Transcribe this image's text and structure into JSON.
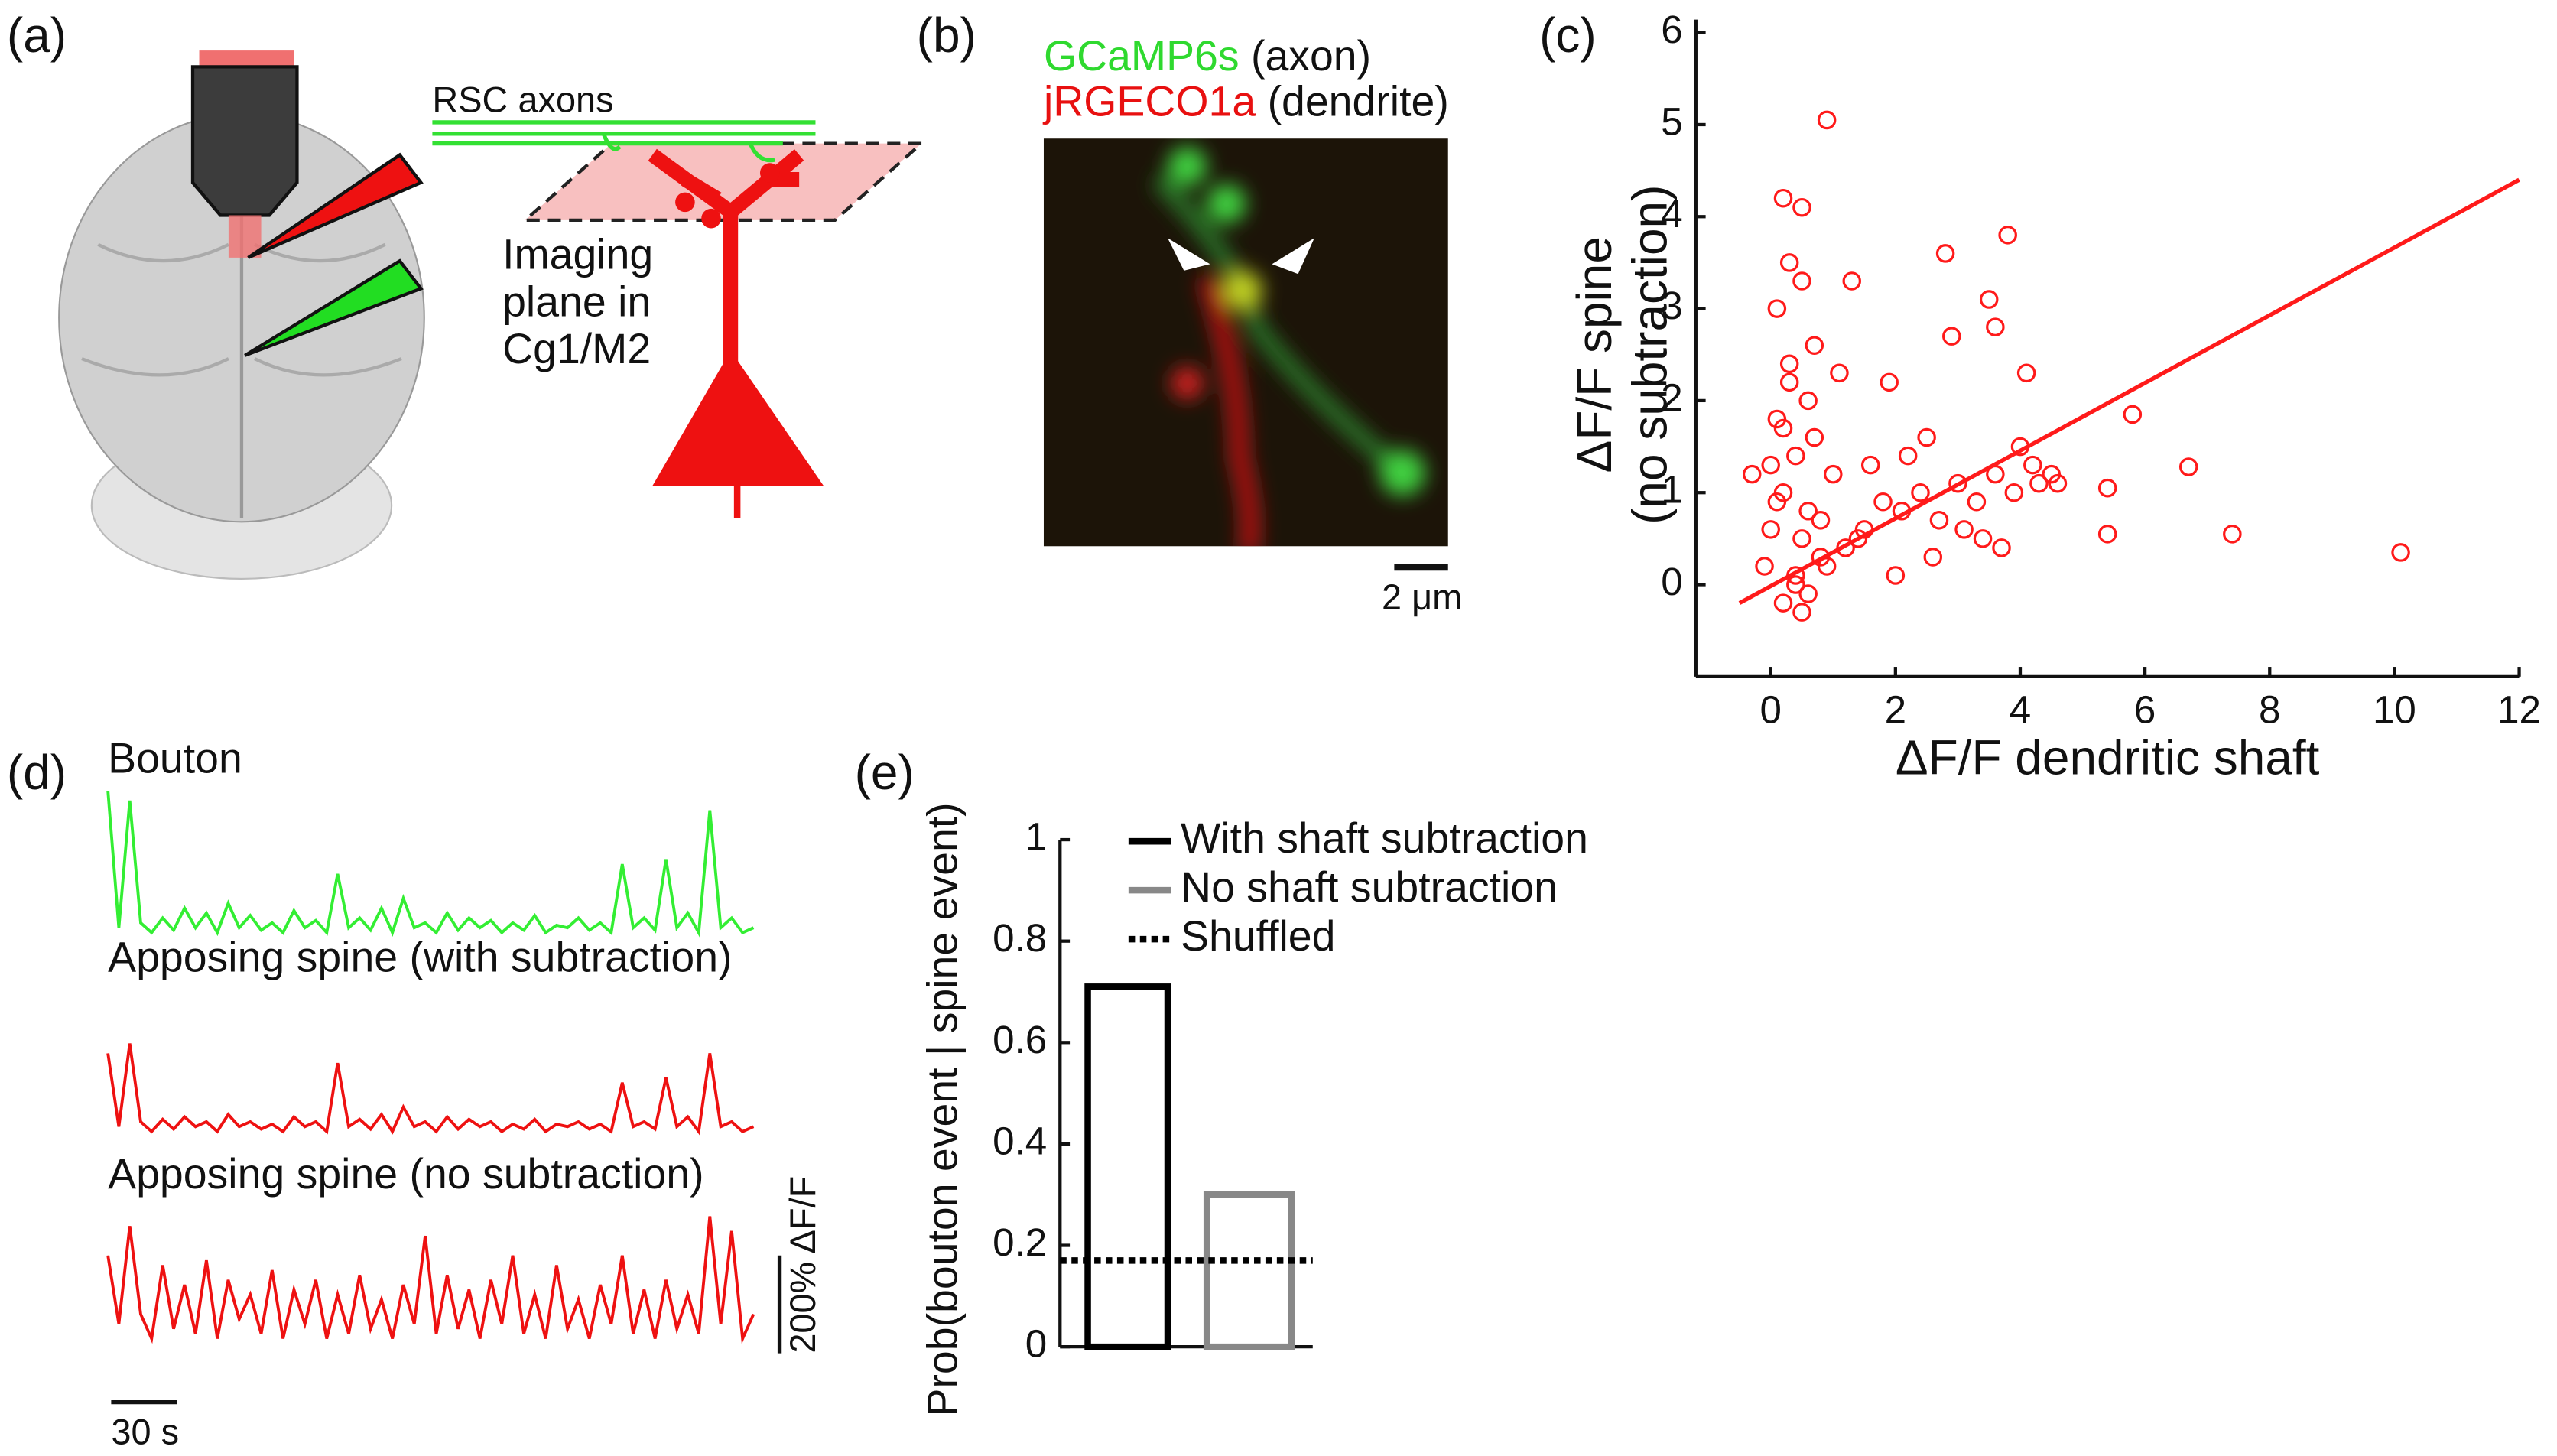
{
  "panel_labels": [
    "(a)",
    "(b)",
    "(c)",
    "(d)",
    "(e)"
  ],
  "diagram_a": {
    "axons_label": "RSC axons",
    "plane_label": [
      "Imaging",
      "plane in",
      "Cg1/M2"
    ]
  },
  "image_b": {
    "legend": [
      {
        "name": "GCaMP6s",
        "note": "(axon)",
        "color": "#2fd92f"
      },
      {
        "name": "jRGECO1a",
        "note": "(dendrite)",
        "color": "#e81010"
      }
    ],
    "scale_label": "2 μm"
  },
  "chart_data": [
    {
      "type": "scatter",
      "xlabel": "ΔF/F dendritic shaft",
      "ylabel": [
        "ΔF/F spine",
        "(no subtraction)"
      ],
      "color": "#ff1a1a",
      "xlim": [
        -1.2,
        12
      ],
      "xticks": [
        0,
        2,
        4,
        6,
        8,
        10,
        12
      ],
      "ylim": [
        -1,
        6
      ],
      "yticks": [
        0,
        1,
        2,
        3,
        4,
        5,
        6
      ],
      "x": [
        0.9,
        0.2,
        0.5,
        3.8,
        2.8,
        0.3,
        0.1,
        0.5,
        1.3,
        3.5,
        3.6,
        2.9,
        5.8,
        5.4,
        5.4,
        6.7,
        7.4,
        10.1,
        -0.1,
        0.0,
        0.2,
        0.4,
        0.6,
        0.8,
        1.0,
        0.1,
        0.3,
        0.5,
        0.7,
        0.2,
        0.4,
        0.6,
        0.0,
        0.3,
        0.5,
        0.1,
        0.8,
        1.2,
        1.5,
        1.8,
        2.1,
        2.4,
        2.7,
        3.0,
        3.3,
        3.6,
        3.9,
        4.2,
        4.5,
        1.6,
        2.2,
        2.6,
        3.1,
        3.4,
        4.0,
        4.3,
        1.1,
        1.9,
        2.5,
        3.7,
        0.6,
        0.2,
        -0.3,
        0.9,
        1.4,
        2.0,
        4.1,
        4.6,
        0.4,
        0.7
      ],
      "y": [
        5.05,
        4.2,
        4.1,
        3.8,
        3.6,
        3.5,
        3.0,
        3.3,
        3.3,
        3.1,
        2.8,
        2.7,
        1.85,
        1.05,
        0.55,
        1.28,
        0.55,
        0.35,
        0.2,
        0.6,
        1.0,
        1.4,
        0.8,
        0.3,
        1.2,
        1.8,
        2.2,
        0.5,
        1.6,
        -0.2,
        0.1,
        2.0,
        1.3,
        2.4,
        -0.3,
        0.9,
        0.7,
        0.4,
        0.6,
        0.9,
        0.8,
        1.0,
        0.7,
        1.1,
        0.9,
        1.2,
        1.0,
        1.3,
        1.2,
        1.3,
        1.4,
        0.3,
        0.6,
        0.5,
        1.5,
        1.1,
        2.3,
        2.2,
        1.6,
        0.4,
        -0.1,
        1.7,
        1.2,
        0.2,
        0.5,
        0.1,
        2.3,
        1.1,
        0.0,
        2.6
      ],
      "fit_line": {
        "x": [
          -0.5,
          12
        ],
        "y": [
          -0.2,
          4.4
        ]
      }
    },
    {
      "type": "line",
      "series": [
        {
          "name": "Bouton",
          "color": "#33ee33",
          "values": [
            300,
            20,
            280,
            30,
            10,
            40,
            15,
            60,
            20,
            50,
            10,
            70,
            20,
            45,
            15,
            30,
            10,
            55,
            20,
            35,
            10,
            130,
            20,
            40,
            15,
            60,
            10,
            80,
            20,
            30,
            10,
            50,
            15,
            40,
            20,
            35,
            10,
            30,
            15,
            45,
            10,
            25,
            20,
            40,
            15,
            30,
            10,
            150,
            20,
            40,
            15,
            160,
            20,
            50,
            10,
            260,
            20,
            40,
            10,
            20
          ]
        },
        {
          "name": "Apposing spine (with subtraction)",
          "color": "#ee1111",
          "values": [
            170,
            20,
            190,
            30,
            10,
            35,
            15,
            40,
            20,
            30,
            10,
            45,
            20,
            30,
            15,
            25,
            10,
            40,
            20,
            30,
            10,
            150,
            20,
            35,
            15,
            45,
            10,
            60,
            20,
            30,
            10,
            40,
            15,
            35,
            20,
            30,
            10,
            25,
            15,
            35,
            10,
            25,
            20,
            30,
            15,
            25,
            10,
            110,
            20,
            30,
            15,
            120,
            20,
            40,
            10,
            170,
            20,
            30,
            10,
            20
          ]
        },
        {
          "name": "Apposing spine (no subtraction)",
          "color": "#ee1111",
          "values": [
            200,
            60,
            260,
            80,
            30,
            180,
            50,
            140,
            40,
            190,
            30,
            150,
            70,
            120,
            40,
            170,
            30,
            130,
            60,
            150,
            30,
            120,
            40,
            160,
            50,
            110,
            30,
            140,
            60,
            240,
            40,
            160,
            50,
            130,
            30,
            150,
            60,
            200,
            40,
            120,
            30,
            180,
            50,
            110,
            30,
            140,
            60,
            200,
            40,
            130,
            30,
            150,
            50,
            120,
            40,
            280,
            60,
            250,
            30,
            80
          ]
        }
      ],
      "scale_bars": {
        "time": {
          "value": 30,
          "label": "30 s"
        },
        "amplitude": {
          "value": 200,
          "label": "200% ΔF/F"
        }
      }
    },
    {
      "type": "bar",
      "ylabel": "Prob(bouton event | spine event)",
      "ylim": [
        0,
        1
      ],
      "yticks": [
        0,
        0.2,
        0.4,
        0.6,
        0.8,
        1
      ],
      "series": [
        {
          "name": "With shaft subtraction",
          "color": "#000000",
          "style": "solid",
          "values": [
            0.71
          ]
        },
        {
          "name": "No shaft subtraction",
          "color": "#888888",
          "style": "solid",
          "values": [
            0.3
          ]
        },
        {
          "name": "Shuffled",
          "color": "#000000",
          "style": "dotted",
          "values": [
            0.17
          ]
        }
      ]
    }
  ]
}
